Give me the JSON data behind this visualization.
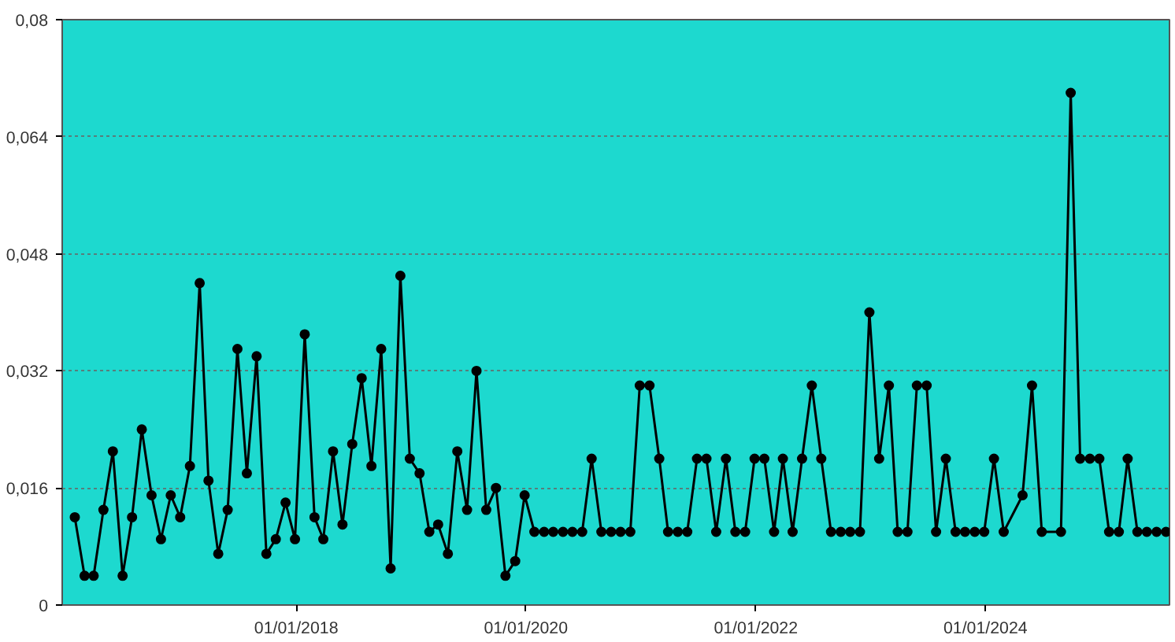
{
  "chart_data": {
    "type": "line",
    "x": [
      "2016-01-28",
      "2016-02-28",
      "2016-03-28",
      "2016-04-28",
      "2016-05-28",
      "2016-06-28",
      "2016-07-28",
      "2016-08-28",
      "2016-09-28",
      "2016-10-28",
      "2016-11-28",
      "2016-12-28",
      "2017-01-28",
      "2017-02-28",
      "2017-03-28",
      "2017-04-28",
      "2017-05-28",
      "2017-06-28",
      "2017-07-28",
      "2017-08-28",
      "2017-09-28",
      "2017-10-28",
      "2017-11-28",
      "2017-12-28",
      "2018-01-28",
      "2018-02-28",
      "2018-03-28",
      "2018-04-28",
      "2018-05-28",
      "2018-06-28",
      "2018-07-28",
      "2018-08-28",
      "2018-09-28",
      "2018-10-28",
      "2018-11-28",
      "2018-12-28",
      "2019-01-28",
      "2019-02-28",
      "2019-03-28",
      "2019-04-28",
      "2019-05-28",
      "2019-06-28",
      "2019-07-28",
      "2019-08-28",
      "2019-09-28",
      "2019-10-28",
      "2019-11-28",
      "2019-12-28",
      "2020-01-28",
      "2020-02-28",
      "2020-03-28",
      "2020-04-28",
      "2020-05-28",
      "2020-06-28",
      "2020-07-28",
      "2020-08-28",
      "2020-09-28",
      "2020-10-28",
      "2020-11-28",
      "2020-12-28",
      "2021-01-28",
      "2021-02-28",
      "2021-03-28",
      "2021-04-28",
      "2021-05-28",
      "2021-06-28",
      "2021-07-28",
      "2021-08-28",
      "2021-09-28",
      "2021-10-28",
      "2021-11-28",
      "2021-12-28",
      "2022-01-28",
      "2022-02-28",
      "2022-03-28",
      "2022-04-28",
      "2022-05-28",
      "2022-06-28",
      "2022-07-28",
      "2022-08-28",
      "2022-09-28",
      "2022-10-28",
      "2022-11-28",
      "2022-12-28",
      "2023-01-28",
      "2023-02-28",
      "2023-03-28",
      "2023-04-28",
      "2023-05-28",
      "2023-06-28",
      "2023-07-28",
      "2023-08-28",
      "2023-09-28",
      "2023-10-28",
      "2023-11-28",
      "2023-12-28",
      "2024-01-28",
      "2024-02-28",
      "2024-04-28",
      "2024-05-28",
      "2024-06-28",
      "2024-08-28",
      "2024-09-28",
      "2024-10-28",
      "2024-11-28",
      "2024-12-28",
      "2025-01-28",
      "2025-02-28",
      "2025-03-28",
      "2025-04-28",
      "2025-05-28",
      "2025-06-28",
      "2025-07-28"
    ],
    "series": [
      {
        "color": "#000000",
        "values": [
          0.012,
          0.004,
          0.004,
          0.013,
          0.021,
          0.004,
          0.012,
          0.024,
          0.015,
          0.009,
          0.015,
          0.012,
          0.019,
          0.044,
          0.017,
          0.007,
          0.013,
          0.035,
          0.018,
          0.034,
          0.007,
          0.009,
          0.014,
          0.009,
          0.037,
          0.012,
          0.009,
          0.021,
          0.011,
          0.022,
          0.031,
          0.019,
          0.035,
          0.005,
          0.045,
          0.02,
          0.018,
          0.01,
          0.011,
          0.007,
          0.021,
          0.013,
          0.032,
          0.013,
          0.016,
          0.004,
          0.006,
          0.015,
          0.01,
          0.01,
          0.01,
          0.01,
          0.01,
          0.01,
          0.02,
          0.01,
          0.01,
          0.01,
          0.01,
          0.03,
          0.03,
          0.02,
          0.01,
          0.01,
          0.01,
          0.02,
          0.02,
          0.01,
          0.02,
          0.01,
          0.01,
          0.02,
          0.02,
          0.01,
          0.02,
          0.01,
          0.02,
          0.03,
          0.02,
          0.01,
          0.01,
          0.01,
          0.01,
          0.04,
          0.02,
          0.03,
          0.01,
          0.01,
          0.03,
          0.03,
          0.01,
          0.02,
          0.01,
          0.01,
          0.01,
          0.01,
          0.02,
          0.01,
          0.015,
          0.03,
          0.01,
          0.01,
          0.07,
          0.02,
          0.02,
          0.02,
          0.01,
          0.01,
          0.02,
          0.01,
          0.01,
          0.01,
          0.01
        ]
      }
    ],
    "xlim": [
      "2015-12-19",
      "2025-08-08"
    ],
    "xticks": [
      {
        "value": "2018-01-01",
        "label": "01/01/2018"
      },
      {
        "value": "2020-01-01",
        "label": "01/01/2020"
      },
      {
        "value": "2022-01-01",
        "label": "01/01/2022"
      },
      {
        "value": "2024-01-01",
        "label": "01/01/2024"
      }
    ],
    "ylim": [
      0,
      0.08
    ],
    "yticks": [
      0,
      {
        "value": 0.016,
        "label": "0,016"
      },
      {
        "value": 0.032,
        "label": "0,032"
      },
      {
        "value": 0.048,
        "label": "0,048"
      },
      {
        "value": 0.064,
        "label": "0,064"
      },
      {
        "value": 0.08,
        "label": "0,08"
      }
    ],
    "grid": "y",
    "marker": "circle",
    "line_style": "solid"
  }
}
